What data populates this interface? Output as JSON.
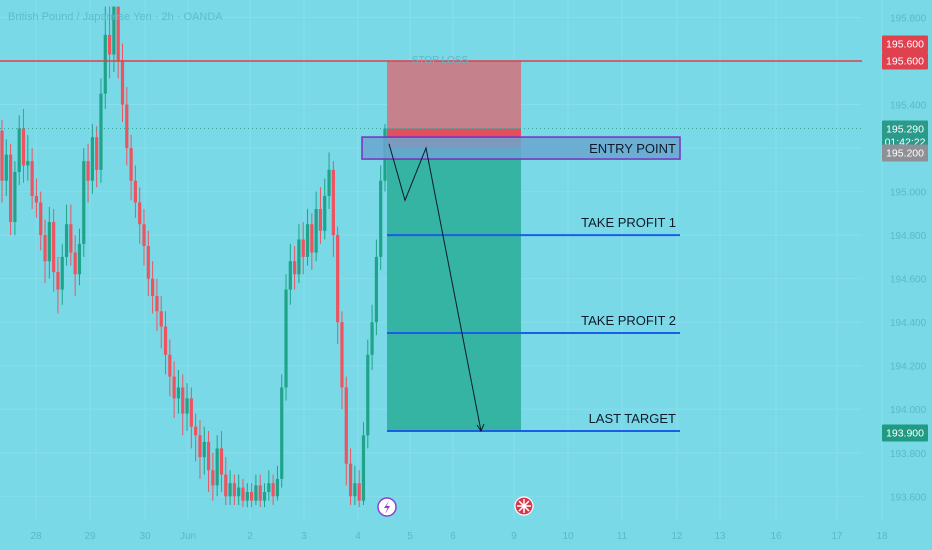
{
  "chart_data": {
    "type": "candlestick",
    "title": "British Pound / Japanese Yen · 2h · OANDA",
    "y_ticks": [
      "195.800",
      "195.600",
      "195.400",
      "195.200",
      "195.000",
      "194.800",
      "194.600",
      "194.400",
      "194.200",
      "194.000",
      "193.800",
      "193.600"
    ],
    "x_ticks": [
      "28",
      "29",
      "30",
      "Jun",
      "2",
      "3",
      "4",
      "5",
      "6",
      "9",
      "10",
      "11",
      "12",
      "13",
      "16",
      "17",
      "18"
    ],
    "ylim": [
      193.55,
      195.85
    ],
    "levels": {
      "stop_loss": {
        "label": "STOP LOSS",
        "price": 195.6,
        "tag": "195.600"
      },
      "current": {
        "price": 195.29,
        "tag": "195.290",
        "countdown": "01:42:22"
      },
      "entry": {
        "label": "ENTRY POINT",
        "price": 195.2,
        "tag": "195.200"
      },
      "take_profit_1": {
        "label": "TAKE PROFIT 1",
        "price": 194.8
      },
      "take_profit_2": {
        "label": "TAKE PROFIT 2",
        "price": 194.35
      },
      "last_target": {
        "label": "LAST TARGET",
        "price": 193.9,
        "tag": "193.900"
      }
    },
    "projection_path": [
      195.22,
      194.96,
      195.2,
      193.9
    ],
    "candles": [
      [
        195.28,
        195.05,
        195.33,
        194.95
      ],
      [
        195.05,
        195.17,
        195.24,
        194.98
      ],
      [
        195.17,
        194.86,
        195.22,
        194.8
      ],
      [
        194.86,
        195.09,
        195.14,
        194.8
      ],
      [
        195.09,
        195.29,
        195.35,
        195.03
      ],
      [
        195.29,
        195.12,
        195.38,
        195.04
      ],
      [
        195.12,
        195.14,
        195.26,
        195.05
      ],
      [
        195.14,
        194.98,
        195.2,
        194.92
      ],
      [
        194.98,
        194.95,
        195.06,
        194.88
      ],
      [
        194.95,
        194.8,
        195.0,
        194.73
      ],
      [
        194.8,
        194.68,
        194.87,
        194.58
      ],
      [
        194.68,
        194.86,
        194.93,
        194.6
      ],
      [
        194.86,
        194.63,
        194.92,
        194.54
      ],
      [
        194.63,
        194.55,
        194.7,
        194.44
      ],
      [
        194.55,
        194.7,
        194.76,
        194.48
      ],
      [
        194.7,
        194.85,
        194.94,
        194.66
      ],
      [
        194.85,
        194.72,
        194.94,
        194.66
      ],
      [
        194.72,
        194.62,
        194.8,
        194.52
      ],
      [
        194.62,
        194.76,
        194.83,
        194.57
      ],
      [
        194.76,
        195.14,
        195.2,
        194.7
      ],
      [
        195.14,
        195.05,
        195.22,
        194.95
      ],
      [
        195.05,
        195.25,
        195.31,
        194.99
      ],
      [
        195.25,
        195.1,
        195.3,
        195.02
      ],
      [
        195.1,
        195.45,
        195.52,
        195.04
      ],
      [
        195.45,
        195.72,
        195.85,
        195.38
      ],
      [
        195.72,
        195.63,
        195.85,
        195.52
      ],
      [
        195.63,
        195.85,
        195.85,
        195.55
      ],
      [
        195.85,
        195.6,
        195.85,
        195.52
      ],
      [
        195.6,
        195.4,
        195.68,
        195.32
      ],
      [
        195.4,
        195.2,
        195.48,
        195.12
      ],
      [
        195.2,
        195.05,
        195.26,
        194.96
      ],
      [
        195.05,
        194.95,
        195.12,
        194.88
      ],
      [
        194.95,
        194.85,
        195.02,
        194.76
      ],
      [
        194.85,
        194.75,
        194.92,
        194.66
      ],
      [
        194.75,
        194.6,
        194.82,
        194.52
      ],
      [
        194.6,
        194.52,
        194.68,
        194.44
      ],
      [
        194.52,
        194.45,
        194.6,
        194.36
      ],
      [
        194.45,
        194.38,
        194.52,
        194.28
      ],
      [
        194.38,
        194.25,
        194.45,
        194.16
      ],
      [
        194.25,
        194.15,
        194.32,
        194.06
      ],
      [
        194.15,
        194.05,
        194.22,
        193.96
      ],
      [
        194.05,
        194.1,
        194.18,
        193.98
      ],
      [
        194.1,
        193.98,
        194.16,
        193.88
      ],
      [
        193.98,
        194.05,
        194.12,
        193.9
      ],
      [
        194.05,
        193.92,
        194.1,
        193.82
      ],
      [
        193.92,
        193.88,
        193.98,
        193.76
      ],
      [
        193.88,
        193.78,
        193.95,
        193.68
      ],
      [
        193.78,
        193.85,
        193.92,
        193.7
      ],
      [
        193.85,
        193.72,
        193.9,
        193.62
      ],
      [
        193.72,
        193.65,
        193.8,
        193.58
      ],
      [
        193.65,
        193.82,
        193.88,
        193.6
      ],
      [
        193.82,
        193.7,
        193.9,
        193.62
      ],
      [
        193.7,
        193.6,
        193.78,
        193.56
      ],
      [
        193.6,
        193.66,
        193.72,
        193.56
      ],
      [
        193.66,
        193.6,
        193.7,
        193.56
      ],
      [
        193.6,
        193.64,
        193.7,
        193.56
      ],
      [
        193.64,
        193.58,
        193.68,
        193.55
      ],
      [
        193.58,
        193.62,
        193.66,
        193.55
      ],
      [
        193.62,
        193.58,
        193.66,
        193.55
      ],
      [
        193.58,
        193.65,
        193.7,
        193.56
      ],
      [
        193.65,
        193.58,
        193.7,
        193.55
      ],
      [
        193.58,
        193.62,
        193.66,
        193.55
      ],
      [
        193.62,
        193.66,
        193.72,
        193.58
      ],
      [
        193.66,
        193.6,
        193.7,
        193.56
      ],
      [
        193.6,
        193.68,
        193.74,
        193.58
      ],
      [
        193.68,
        194.1,
        194.16,
        193.64
      ],
      [
        194.1,
        194.55,
        194.62,
        194.04
      ],
      [
        194.55,
        194.68,
        194.76,
        194.48
      ],
      [
        194.68,
        194.62,
        194.75,
        194.55
      ],
      [
        194.62,
        194.78,
        194.85,
        194.58
      ],
      [
        194.78,
        194.7,
        194.86,
        194.62
      ],
      [
        194.7,
        194.85,
        194.92,
        194.66
      ],
      [
        194.85,
        194.72,
        194.9,
        194.64
      ],
      [
        194.72,
        194.92,
        195.0,
        194.68
      ],
      [
        194.92,
        194.82,
        195.02,
        194.76
      ],
      [
        194.82,
        194.98,
        195.06,
        194.78
      ],
      [
        194.98,
        195.1,
        195.18,
        194.92
      ],
      [
        195.1,
        194.8,
        195.14,
        194.7
      ],
      [
        194.8,
        194.4,
        194.84,
        194.3
      ],
      [
        194.4,
        194.1,
        194.45,
        194.0
      ],
      [
        194.1,
        193.75,
        194.15,
        193.65
      ],
      [
        193.75,
        193.6,
        193.82,
        193.56
      ],
      [
        193.6,
        193.66,
        193.74,
        193.56
      ],
      [
        193.66,
        193.58,
        193.72,
        193.55
      ],
      [
        193.58,
        193.88,
        193.94,
        193.56
      ],
      [
        193.88,
        194.25,
        194.32,
        193.82
      ],
      [
        194.25,
        194.4,
        194.48,
        194.18
      ],
      [
        194.4,
        194.7,
        194.78,
        194.34
      ],
      [
        194.7,
        195.05,
        195.12,
        194.64
      ],
      [
        195.05,
        195.29,
        195.31,
        195.0
      ]
    ]
  }
}
